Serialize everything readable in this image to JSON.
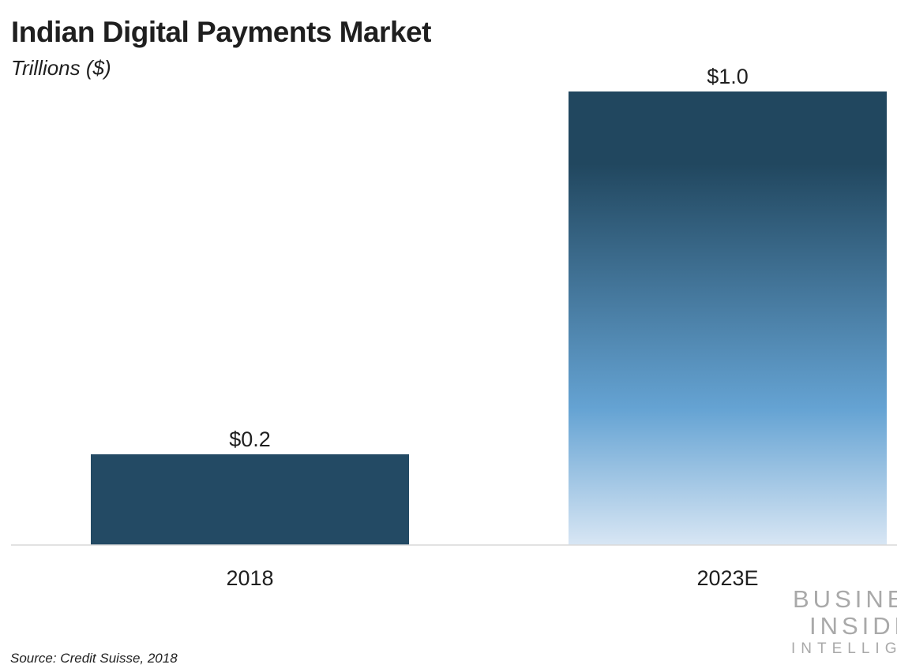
{
  "chart_data": {
    "type": "bar",
    "title": "Indian Digital Payments Market",
    "subtitle": "Trillions ($)",
    "categories": [
      "2018",
      "2023E"
    ],
    "values": [
      0.2,
      1.0
    ],
    "data_labels": [
      "$0.2",
      "$1.0"
    ],
    "xlabel": "",
    "ylabel": "",
    "ylim": [
      0,
      1.0
    ],
    "grid": false,
    "legend": "none",
    "colors": {
      "bar_2018": "#234a64",
      "bar_2023E_top": "#21475f",
      "bar_2023E_mid": "#65a3d3",
      "bar_2023E_bottom": "#d8e6f4",
      "axis": "#d9d9d9"
    }
  },
  "source": "Source: Credit Suisse, 2018",
  "logo": {
    "line1": "BUSINESS",
    "line2": "INSIDER",
    "line3": "INTELLIGENCE"
  }
}
